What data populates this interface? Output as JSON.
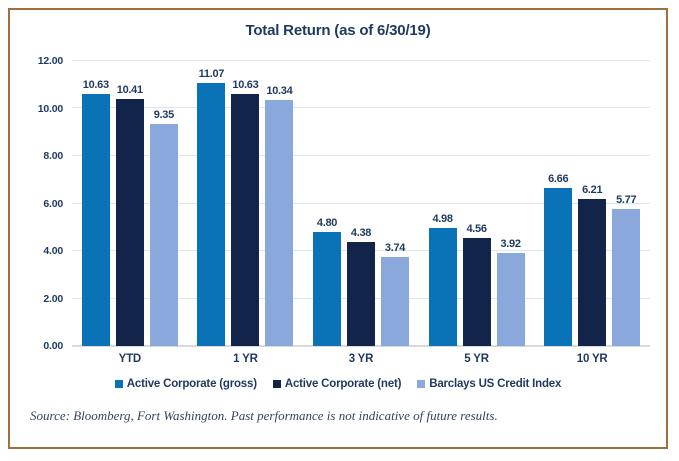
{
  "title": "Total Return (as of 6/30/19)",
  "source_note": "Source: Bloomberg, Fort Washington. Past performance is not indicative of future results.",
  "colors": {
    "frame_border": "#9C713C",
    "heading_text": "#1F3A5F",
    "gridline": "#DCE6F1",
    "baseline": "#D9D9D9",
    "source_text": "#2E4563"
  },
  "chart_data": {
    "type": "bar",
    "title": "Total Return (as of 6/30/19)",
    "categories": [
      "YTD",
      "1 YR",
      "3 YR",
      "5 YR",
      "10 YR"
    ],
    "series": [
      {
        "name": "Active Corporate (gross)",
        "color": "#0A73B8",
        "values": [
          10.63,
          11.07,
          4.8,
          4.98,
          6.66
        ]
      },
      {
        "name": "Active Corporate (net)",
        "color": "#13244A",
        "values": [
          10.41,
          10.63,
          4.38,
          4.56,
          6.21
        ]
      },
      {
        "name": "Barclays US Credit Index",
        "color": "#8AA8DC",
        "values": [
          9.35,
          10.34,
          3.74,
          3.92,
          5.77
        ]
      }
    ],
    "ylim": [
      0,
      12
    ],
    "yticks": [
      "0.00",
      "2.00",
      "4.00",
      "6.00",
      "8.00",
      "10.00",
      "12.00"
    ],
    "value_label_decimals": 2,
    "grid": true,
    "legend_position": "bottom",
    "xlabel": "",
    "ylabel": ""
  }
}
